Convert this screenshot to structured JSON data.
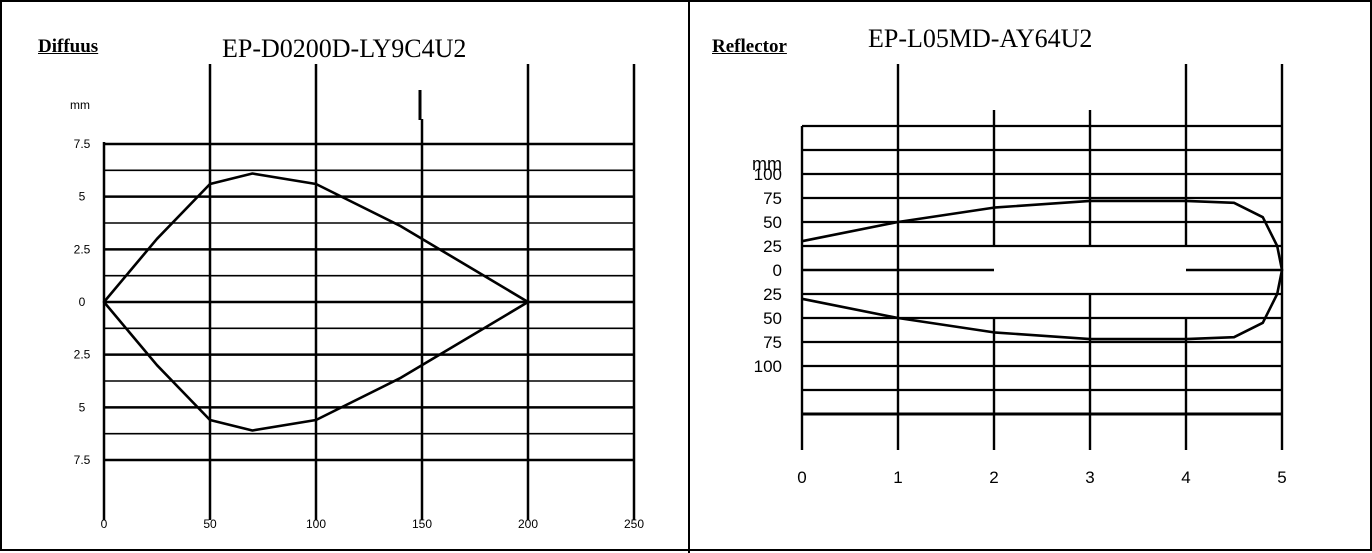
{
  "colors": {
    "line": "#000000",
    "background": "#ffffff"
  },
  "chart_data": [
    {
      "type": "line",
      "panel_label": "Diffuus",
      "title": "EP-D0200D-LY9C4U2",
      "unit_label": "mm",
      "x_ticks": [
        "0",
        "50",
        "100",
        "150",
        "200",
        "250"
      ],
      "y_ticks": [
        "7.5",
        "5",
        "2.5",
        "0",
        "2.5",
        "5",
        "7.5"
      ],
      "xlim": [
        0,
        250
      ],
      "ylim": [
        -7.5,
        7.5
      ],
      "grid": true,
      "series": [
        {
          "x": [
            0,
            25,
            50,
            70,
            100,
            140,
            175,
            200
          ],
          "upper": [
            0,
            3.0,
            5.6,
            6.1,
            5.6,
            3.6,
            1.5,
            0
          ],
          "lower": [
            0,
            -3.0,
            -5.6,
            -6.1,
            -5.6,
            -3.6,
            -1.5,
            0
          ]
        }
      ]
    },
    {
      "type": "line",
      "panel_label": "Reflector",
      "title": "EP-L05MD-AY64U2",
      "unit_label": "mm",
      "x_ticks": [
        "0",
        "1",
        "2",
        "3",
        "4",
        "5"
      ],
      "y_ticks": [
        "100",
        "75",
        "50",
        "25",
        "0",
        "25",
        "50",
        "75",
        "100"
      ],
      "xlim": [
        0,
        5
      ],
      "ylim": [
        -100,
        100
      ],
      "grid": true,
      "series": [
        {
          "x": [
            0,
            1,
            2,
            3,
            4,
            4.5,
            4.8,
            4.95,
            5.0
          ],
          "upper": [
            30,
            50,
            65,
            72,
            72,
            70,
            55,
            25,
            0
          ],
          "lower": [
            -30,
            -50,
            -65,
            -72,
            -72,
            -70,
            -55,
            -25,
            0
          ]
        }
      ]
    }
  ]
}
